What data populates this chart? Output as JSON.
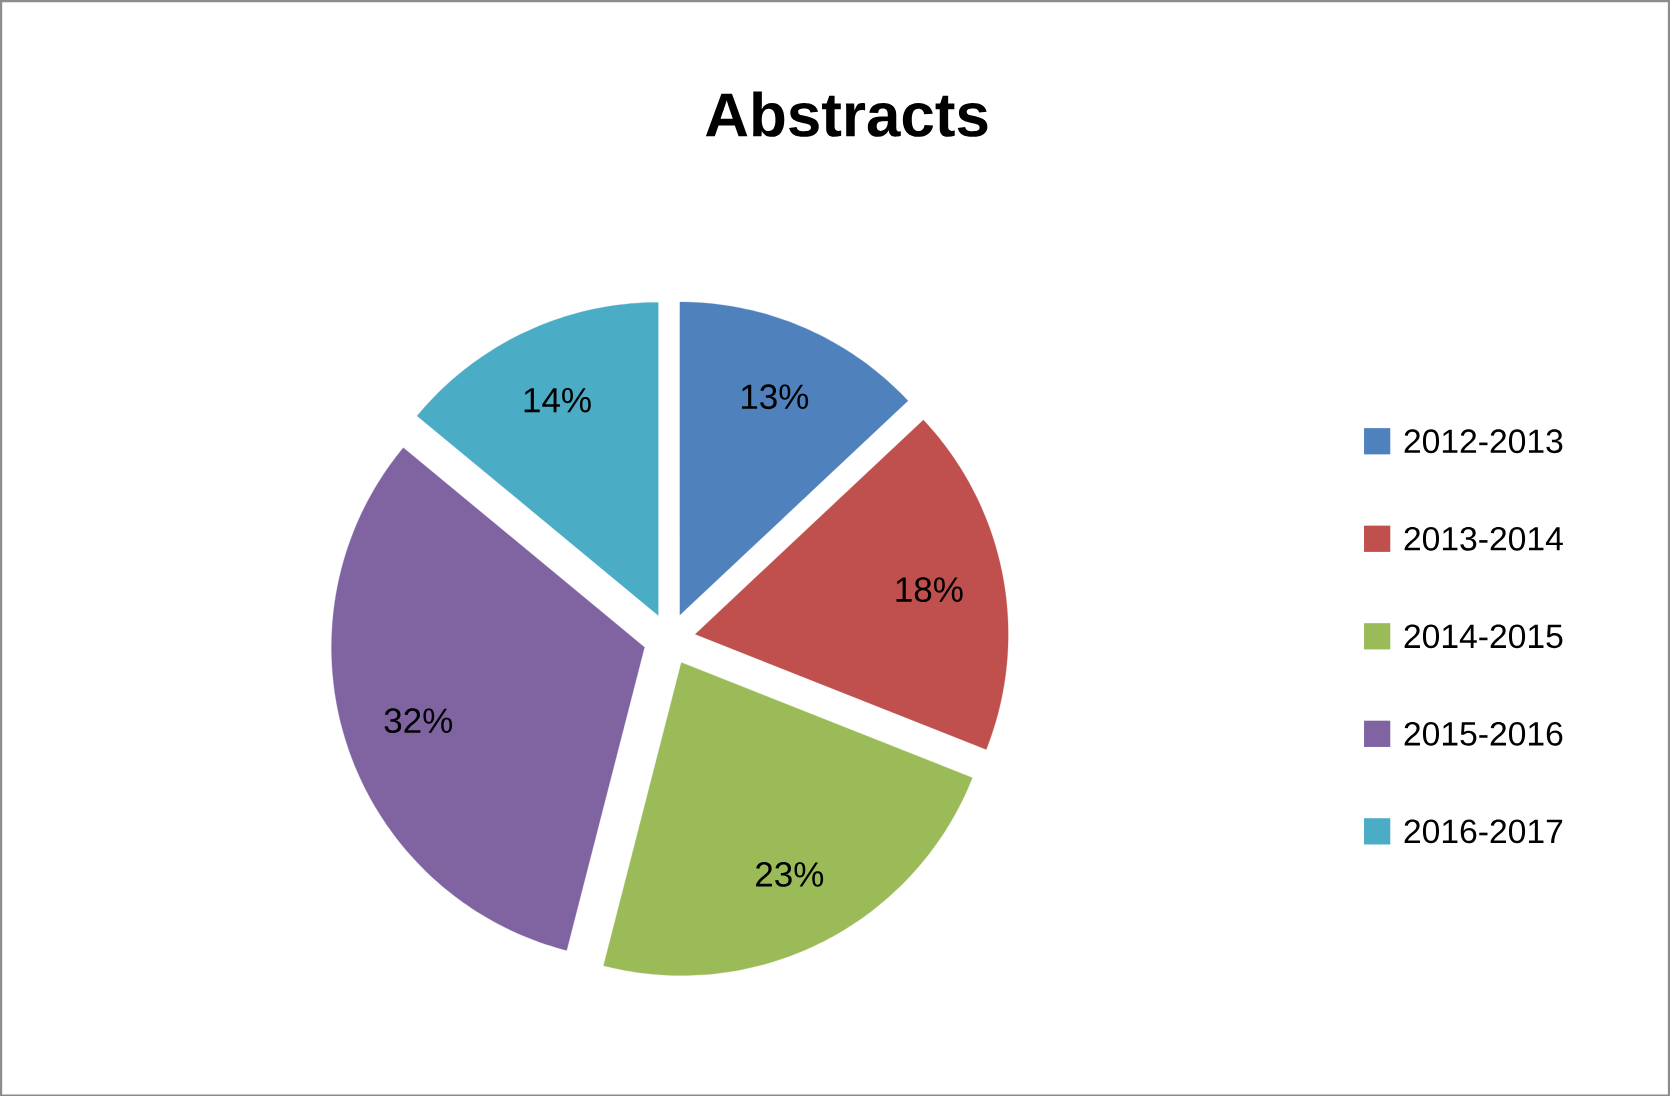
{
  "chart_data": {
    "type": "pie",
    "title": "Abstracts",
    "categories": [
      "2012-2013",
      "2013-2014",
      "2014-2015",
      "2015-2016",
      "2016-2017"
    ],
    "values": [
      13,
      18,
      23,
      32,
      14
    ],
    "value_labels": [
      "13%",
      "18%",
      "23%",
      "32%",
      "14%"
    ],
    "colors": [
      "#4f81bd",
      "#c0504d",
      "#9bbb59",
      "#8064a2",
      "#4bacc6"
    ],
    "legend": "right"
  }
}
